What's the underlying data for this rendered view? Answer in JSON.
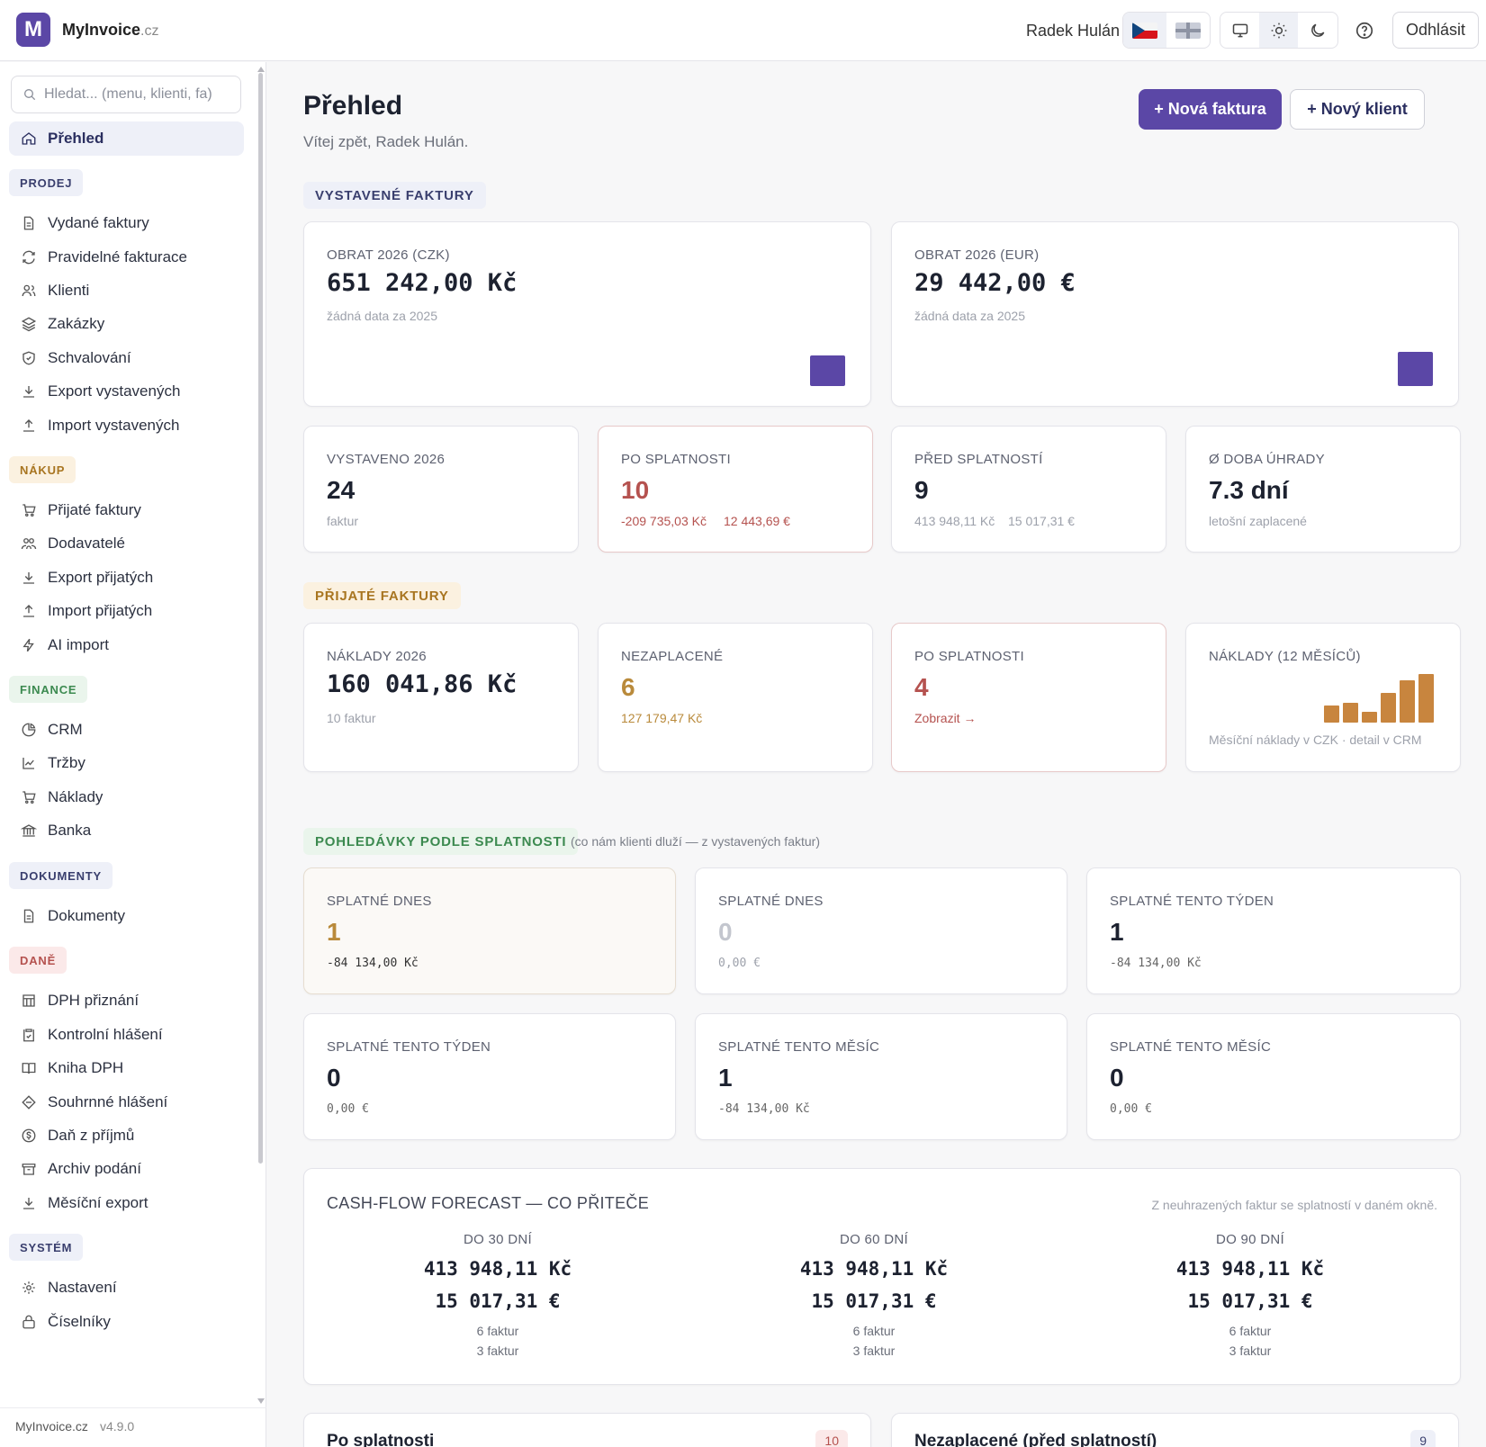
{
  "app": {
    "logo_letter": "M",
    "name": "MyInvoice",
    "tld": ".cz"
  },
  "header": {
    "user_name": "Radek Hulán",
    "logout_label": "Odhlásit"
  },
  "sidebar": {
    "search_placeholder": "Hledat... (menu, klienti, fa)",
    "overview_label": "Přehled",
    "sections": {
      "prodej": "PRODEJ",
      "nakup": "NÁKUP",
      "finance": "FINANCE",
      "dokumenty": "DOKUMENTY",
      "dane": "DANĚ",
      "system": "SYSTÉM"
    },
    "items": {
      "vydane_faktury": "Vydané faktury",
      "pravidelne": "Pravidelné fakturace",
      "klienti": "Klienti",
      "zakazky": "Zakázky",
      "schvalovani": "Schvalování",
      "export_vystavenych": "Export vystavených",
      "import_vystavenych": "Import vystavených",
      "prijate_faktury": "Přijaté faktury",
      "dodavatele": "Dodavatelé",
      "export_prijatych": "Export přijatých",
      "import_prijatych": "Import přijatých",
      "ai_import": "AI import",
      "crm": "CRM",
      "trzby": "Tržby",
      "naklady": "Náklady",
      "banka": "Banka",
      "dokumenty": "Dokumenty",
      "dph_priznani": "DPH přiznání",
      "kontrolni_hlaseni": "Kontrolní hlášení",
      "kniha_dph": "Kniha DPH",
      "souhrnne_hlaseni": "Souhrnné hlášení",
      "dan_z_prijmu": "Daň z příjmů",
      "archiv_podani": "Archiv podání",
      "mesicni_export": "Měsíční export",
      "nastaveni": "Nastavení",
      "ciselniky": "Číselníky"
    },
    "footer_name": "MyInvoice.cz",
    "footer_version": "v4.9.0"
  },
  "main": {
    "title": "Přehled",
    "subtitle": "Vítej zpět, Radek Hulán.",
    "new_invoice_label": "+ Nová faktura",
    "new_client_label": "+ Nový klient",
    "issued": {
      "chip": "VYSTAVENÉ FAKTURY",
      "turnover_czk": {
        "label": "OBRAT 2026 (CZK)",
        "value": "651 242,00 Kč",
        "sub": "žádná data za 2025"
      },
      "turnover_eur": {
        "label": "OBRAT 2026 (EUR)",
        "value": "29 442,00 €",
        "sub": "žádná data za 2025"
      },
      "issued_count": {
        "label": "VYSTAVENO 2026",
        "value": "24",
        "sub": "faktur"
      },
      "overdue": {
        "label": "PO SPLATNOSTI",
        "value": "10",
        "sub_czk": "-209 735,03 Kč",
        "sub_eur": "12 443,69 €"
      },
      "before_due": {
        "label": "PŘED SPLATNOSTÍ",
        "value": "9",
        "sub_czk": "413 948,11 Kč",
        "sub_eur": "15 017,31 €"
      },
      "avg_payment": {
        "label": "Ø DOBA ÚHRADY",
        "value": "7.3 dní",
        "sub": "letošní zaplacené"
      }
    },
    "received": {
      "chip": "PŘIJATÉ FAKTURY",
      "costs": {
        "label": "NÁKLADY 2026",
        "value": "160 041,86 Kč",
        "sub": "10 faktur"
      },
      "unpaid": {
        "label": "NEZAPLACENÉ",
        "value": "6",
        "sub": "127 179,47 Kč"
      },
      "overdue": {
        "label": "PO SPLATNOSTI",
        "value": "4",
        "link": "Zobrazit →"
      },
      "costs_12m": {
        "label": "NÁKLADY (12 MĚSÍCŮ)",
        "sub": "Měsíční náklady v CZK · detail v CRM"
      }
    },
    "receivables": {
      "chip": "POHLEDÁVKY PODLE SPLATNOSTI",
      "note": "(co nám klienti dluží — z vystavených faktur)",
      "cards": [
        {
          "label": "SPLATNÉ DNES",
          "value": "1",
          "amount": "-84 134,00 Kč"
        },
        {
          "label": "SPLATNÉ DNES",
          "value": "0",
          "amount": "0,00 €"
        },
        {
          "label": "SPLATNÉ TENTO TÝDEN",
          "value": "1",
          "amount": "-84 134,00 Kč"
        },
        {
          "label": "SPLATNÉ TENTO TÝDEN",
          "value": "0",
          "amount": "0,00 €"
        },
        {
          "label": "SPLATNÉ TENTO MĚSÍC",
          "value": "1",
          "amount": "-84 134,00 Kč"
        },
        {
          "label": "SPLATNÉ TENTO MĚSÍC",
          "value": "0",
          "amount": "0,00 €"
        }
      ]
    },
    "cashflow": {
      "title": "CASH-FLOW FORECAST — CO PŘITEČE",
      "note": "Z neuhrazených faktur se splatností v daném okně.",
      "columns": [
        {
          "label": "DO 30 DNÍ",
          "czk": "413 948,11 Kč",
          "eur": "15 017,31 €",
          "n_czk": "6 faktur",
          "n_eur": "3 faktur"
        },
        {
          "label": "DO 60 DNÍ",
          "czk": "413 948,11 Kč",
          "eur": "15 017,31 €",
          "n_czk": "6 faktur",
          "n_eur": "3 faktur"
        },
        {
          "label": "DO 90 DNÍ",
          "czk": "413 948,11 Kč",
          "eur": "15 017,31 €",
          "n_czk": "6 faktur",
          "n_eur": "3 faktur"
        }
      ]
    },
    "bottom": {
      "overdue_title": "Po splatnosti",
      "overdue_count": "10",
      "unpaid_title": "Nezaplacené (před splatností)",
      "unpaid_count": "9"
    }
  },
  "chart_data": {
    "type": "bar",
    "title": "NÁKLADY (12 MĚSÍCŮ)",
    "note": "relative monthly cost heights (unlabelled mini chart)",
    "values": [
      0.36,
      0.4,
      0.22,
      0.62,
      0.87,
      1.0
    ],
    "color": "#c8853e"
  },
  "colors": {
    "accent": "#5b47a6",
    "overdue_red": "#b5524f",
    "amber": "#b98a3b",
    "muted": "#9da1ab"
  }
}
